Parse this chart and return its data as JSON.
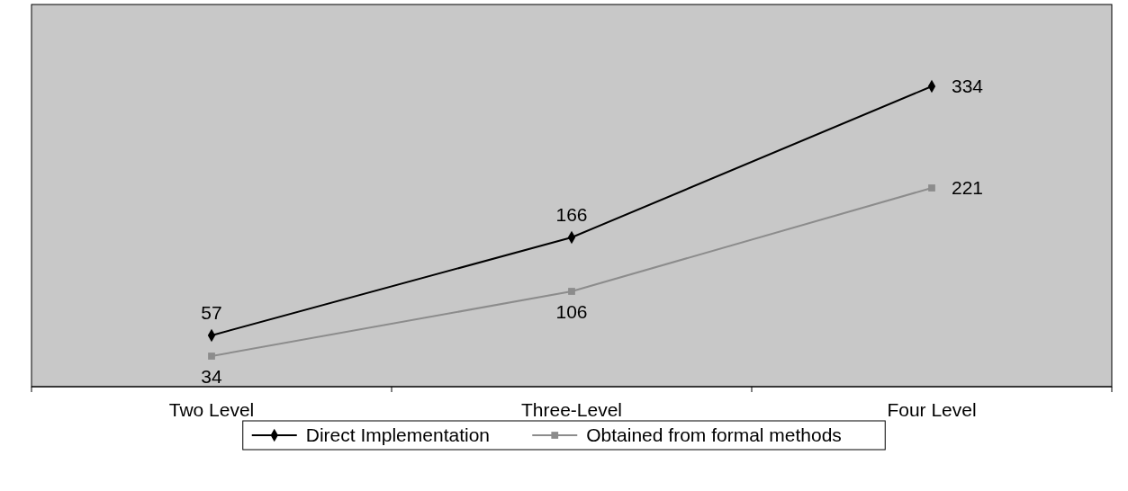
{
  "chart_data": {
    "type": "line",
    "categories": [
      "Two Level",
      "Three-Level",
      "Four Level"
    ],
    "series": [
      {
        "name": "Direct Implementation",
        "color": "#000000",
        "marker": "diamond",
        "values": [
          57,
          166,
          334
        ]
      },
      {
        "name": "Obtained from formal methods",
        "color": "#8c8c8c",
        "marker": "square",
        "values": [
          34,
          106,
          221
        ]
      }
    ],
    "ylim": [
      0,
      425
    ],
    "tick_labels": "x",
    "data_labels": true,
    "legend": "bottom",
    "grid": false
  }
}
